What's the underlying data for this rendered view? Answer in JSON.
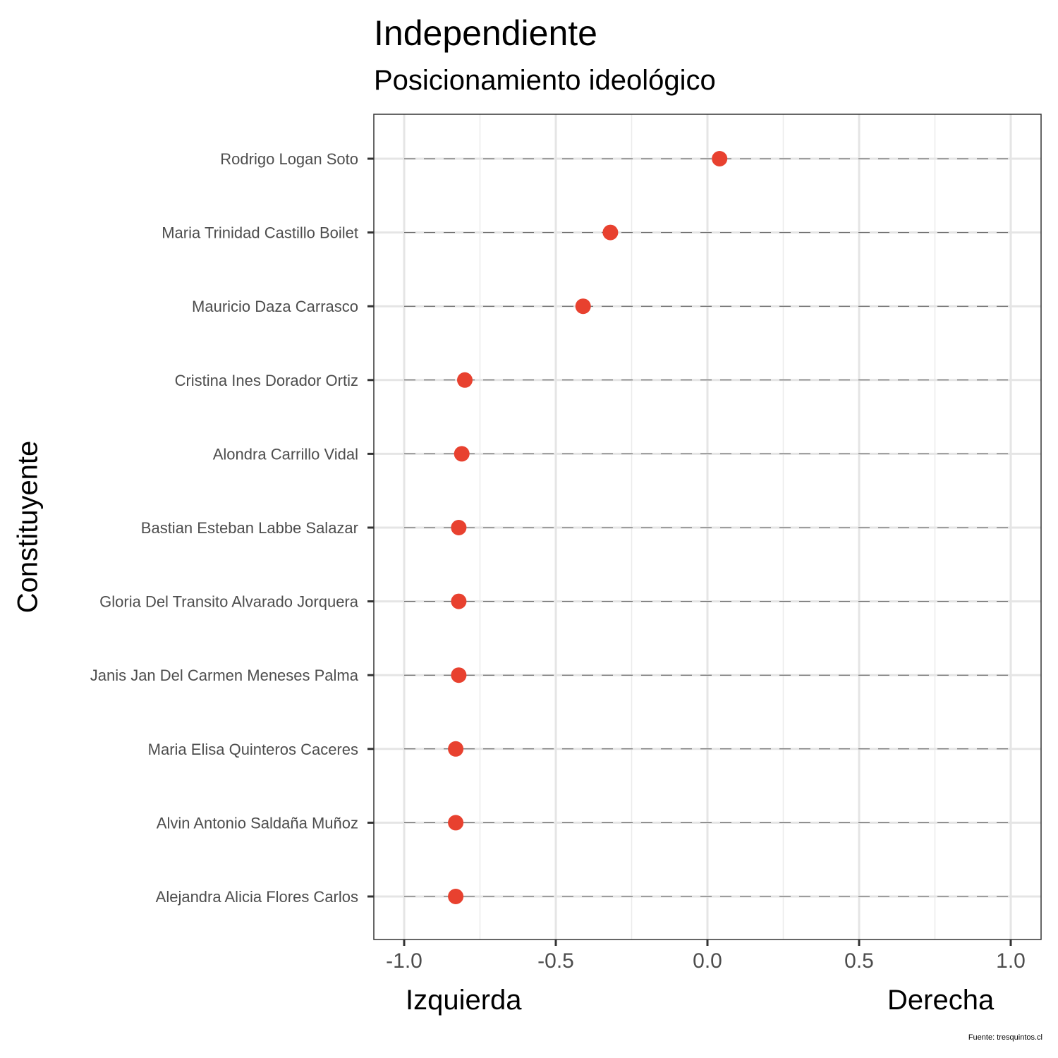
{
  "chart_data": {
    "type": "scatter",
    "title": "Independiente",
    "subtitle": "Posicionamiento ideológico",
    "ylabel": "Constituyente",
    "xlabel_left": "Izquierda",
    "xlabel_right": "Derecha",
    "source": "Fuente: tresquintos.cl",
    "xlim": [
      -1.1,
      1.1
    ],
    "xticks": [
      -1.0,
      -0.5,
      0.0,
      0.5,
      1.0
    ],
    "xtick_labels": [
      "-1.0",
      "-0.5",
      "0.0",
      "0.5",
      "1.0"
    ],
    "grid": true,
    "point_color": "#E8412F",
    "points": [
      {
        "name": "Rodrigo Logan Soto",
        "x": 0.04
      },
      {
        "name": "Maria Trinidad Castillo Boilet",
        "x": -0.32
      },
      {
        "name": "Mauricio Daza Carrasco",
        "x": -0.41
      },
      {
        "name": "Cristina Ines Dorador Ortiz",
        "x": -0.8
      },
      {
        "name": "Alondra Carrillo Vidal",
        "x": -0.81
      },
      {
        "name": "Bastian Esteban Labbe Salazar",
        "x": -0.82
      },
      {
        "name": "Gloria Del Transito Alvarado Jorquera",
        "x": -0.82
      },
      {
        "name": "Janis Jan Del Carmen Meneses Palma",
        "x": -0.82
      },
      {
        "name": "Maria Elisa Quinteros Caceres",
        "x": -0.83
      },
      {
        "name": "Alvin Antonio Saldaña Muñoz",
        "x": -0.83
      },
      {
        "name": "Alejandra Alicia Flores Carlos",
        "x": -0.83
      }
    ]
  }
}
